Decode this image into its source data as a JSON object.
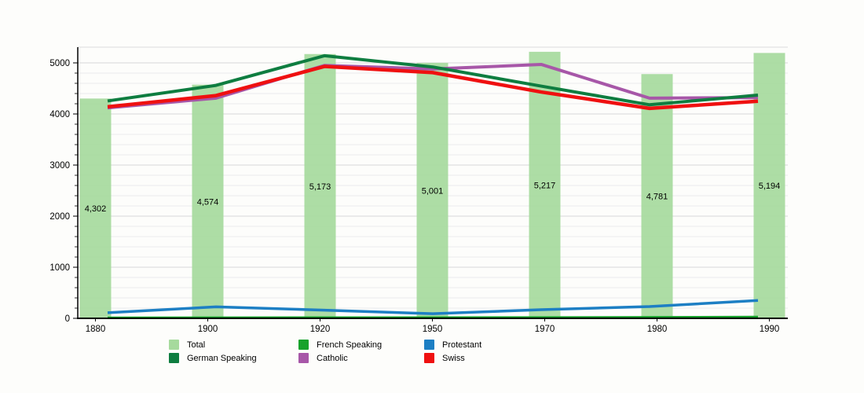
{
  "background_color": "#fdfdfb",
  "chart_data": {
    "type": "bar+line",
    "title": "",
    "xlabel": "",
    "ylabel": "",
    "categories": [
      "1880",
      "1900",
      "1920",
      "1950",
      "1970",
      "1980",
      "1990"
    ],
    "bar_series": {
      "name": "Total",
      "color": "#a6da9d",
      "values": [
        4302,
        4574,
        5173,
        5001,
        5217,
        4781,
        5194
      ],
      "value_labels": [
        "4,302",
        "4,574",
        "5,173",
        "5,001",
        "5,217",
        "4,781",
        "5,194"
      ]
    },
    "line_series": [
      {
        "name": "French Speaking",
        "color": "#17a22b",
        "values": [
          15,
          18,
          20,
          20,
          22,
          25,
          30
        ]
      },
      {
        "name": "Protestant",
        "color": "#1d7fc4",
        "values": [
          110,
          225,
          160,
          90,
          170,
          230,
          350
        ]
      },
      {
        "name": "Catholic",
        "color": "#a757a8",
        "values": [
          4120,
          4310,
          4950,
          4880,
          4970,
          4310,
          4320
        ]
      },
      {
        "name": "German Speaking",
        "color": "#0e7d40",
        "values": [
          4255,
          4560,
          5140,
          4920,
          4545,
          4180,
          4370
        ]
      },
      {
        "name": "Swiss",
        "color": "#ef1010",
        "values": [
          4140,
          4360,
          4930,
          4810,
          4430,
          4110,
          4250
        ]
      }
    ],
    "y_axis": {
      "tick_labels": [
        "0",
        "1000",
        "2000",
        "3000",
        "4000",
        "5000"
      ],
      "tick_values": [
        0,
        1000,
        2000,
        3000,
        4000,
        5000
      ],
      "minor_step": 200,
      "ylim": [
        0,
        5300
      ]
    },
    "grid": "horizontal",
    "legend_position": "bottom",
    "legend": [
      {
        "label": "Total",
        "color": "#a6da9d"
      },
      {
        "label": "German Speaking",
        "color": "#0e7d40"
      },
      {
        "label": "French Speaking",
        "color": "#17a22b"
      },
      {
        "label": "Catholic",
        "color": "#a757a8"
      },
      {
        "label": "Protestant",
        "color": "#1d7fc4"
      },
      {
        "label": "Swiss",
        "color": "#ef1010"
      }
    ]
  }
}
